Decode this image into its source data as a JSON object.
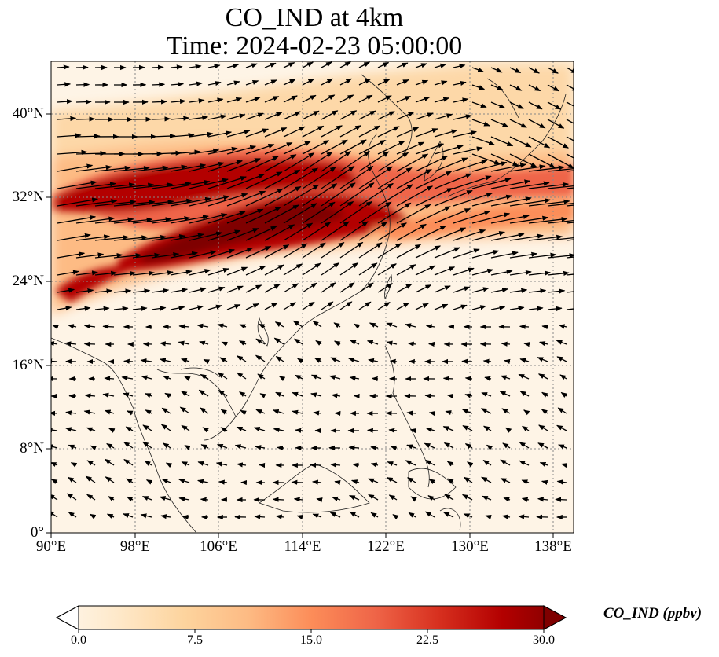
{
  "title": {
    "line1": "CO_IND at 4km",
    "line2": "Time: 2024-02-23 05:00:00"
  },
  "map": {
    "variable": "CO_IND",
    "level": "4km",
    "time": "2024-02-23 05:00:00",
    "lon_range": [
      90,
      140
    ],
    "lat_range": [
      0,
      45
    ],
    "lat_ticks": [
      "0°",
      "8°N",
      "16°N",
      "24°N",
      "32°N",
      "40°N"
    ],
    "lon_ticks": [
      "90°E",
      "98°E",
      "106°E",
      "114°E",
      "122°E",
      "130°E",
      "138°E"
    ],
    "gridlines": "dotted",
    "overlay": "wind vectors (quiver)",
    "colormap": "OrRd",
    "high_concentration_band": "from northern Myanmar / southwest China northeast across central China to Korea and Japan, 24°N–36°N"
  },
  "colorbar": {
    "label": "CO_IND (ppbv)",
    "ticks": [
      "0.0",
      "7.5",
      "15.0",
      "22.5",
      "30.0"
    ],
    "min": 0,
    "max": 30,
    "extend": "both",
    "colors": [
      "#fff7ec",
      "#fee8c8",
      "#fdd49e",
      "#fdbb84",
      "#fc8d59",
      "#ef6548",
      "#d7301f",
      "#b30000",
      "#7f0000"
    ]
  }
}
